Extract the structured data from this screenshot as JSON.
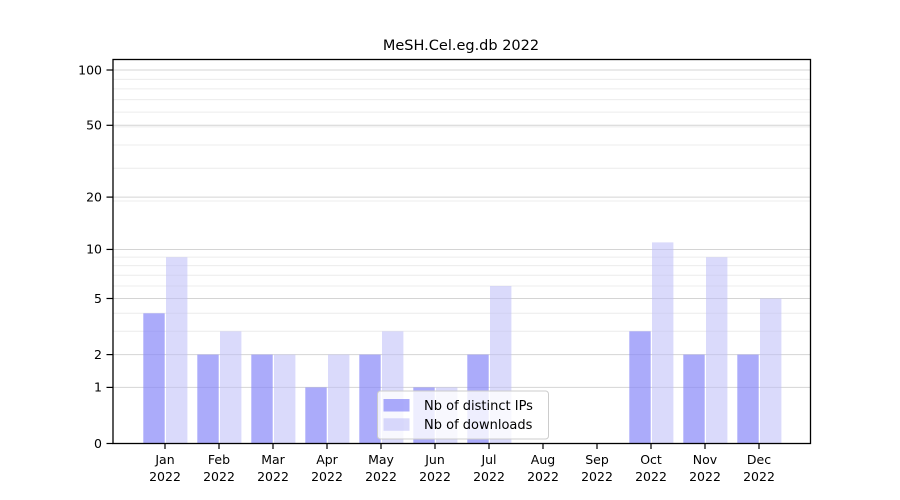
{
  "figure": {
    "title": "MeSH.Cel.eg.db 2022"
  },
  "chart_data": {
    "type": "bar",
    "title": "MeSH.Cel.eg.db 2022",
    "categories": [
      "Jan 2022",
      "Feb 2022",
      "Mar 2022",
      "Apr 2022",
      "May 2022",
      "Jun 2022",
      "Jul 2022",
      "Aug 2022",
      "Sep 2022",
      "Oct 2022",
      "Nov 2022",
      "Dec 2022"
    ],
    "x_tick_months": [
      "Jan",
      "Feb",
      "Mar",
      "Apr",
      "May",
      "Jun",
      "Jul",
      "Aug",
      "Sep",
      "Oct",
      "Nov",
      "Dec"
    ],
    "x_tick_year": "2022",
    "series": [
      {
        "name": "Nb of distinct IPs",
        "color_key": "ips",
        "values": [
          4,
          2,
          2,
          1,
          2,
          1,
          2,
          0,
          0,
          3,
          2,
          2
        ]
      },
      {
        "name": "Nb of downloads",
        "color_key": "downloads",
        "values": [
          9,
          3,
          2,
          2,
          3,
          1,
          6,
          0,
          0,
          11,
          9,
          5
        ]
      }
    ],
    "xlabel": "",
    "ylabel": "",
    "yscale": "log1p",
    "ylim": [
      0,
      114
    ],
    "yticks_labeled": [
      0,
      1,
      2,
      5,
      10,
      20,
      50,
      100
    ],
    "yticks_minor": [
      3,
      4,
      6,
      7,
      8,
      9,
      19,
      29,
      39,
      49,
      59,
      69,
      79,
      89
    ],
    "grid": "horizontal",
    "legend": {
      "position": "lower-center",
      "entries": [
        "Nb of distinct IPs",
        "Nb of downloads"
      ]
    },
    "colors": {
      "ips": "rgba(136,136,248,0.70)",
      "downloads": "rgba(188,188,248,0.55)",
      "grid_major": "#d4d4d4",
      "grid_minor": "#ececec",
      "spine": "#000000",
      "tick_text": "#000000",
      "legend_bg": "rgba(255,255,255,0.8)",
      "legend_border": "#cccccc"
    }
  }
}
